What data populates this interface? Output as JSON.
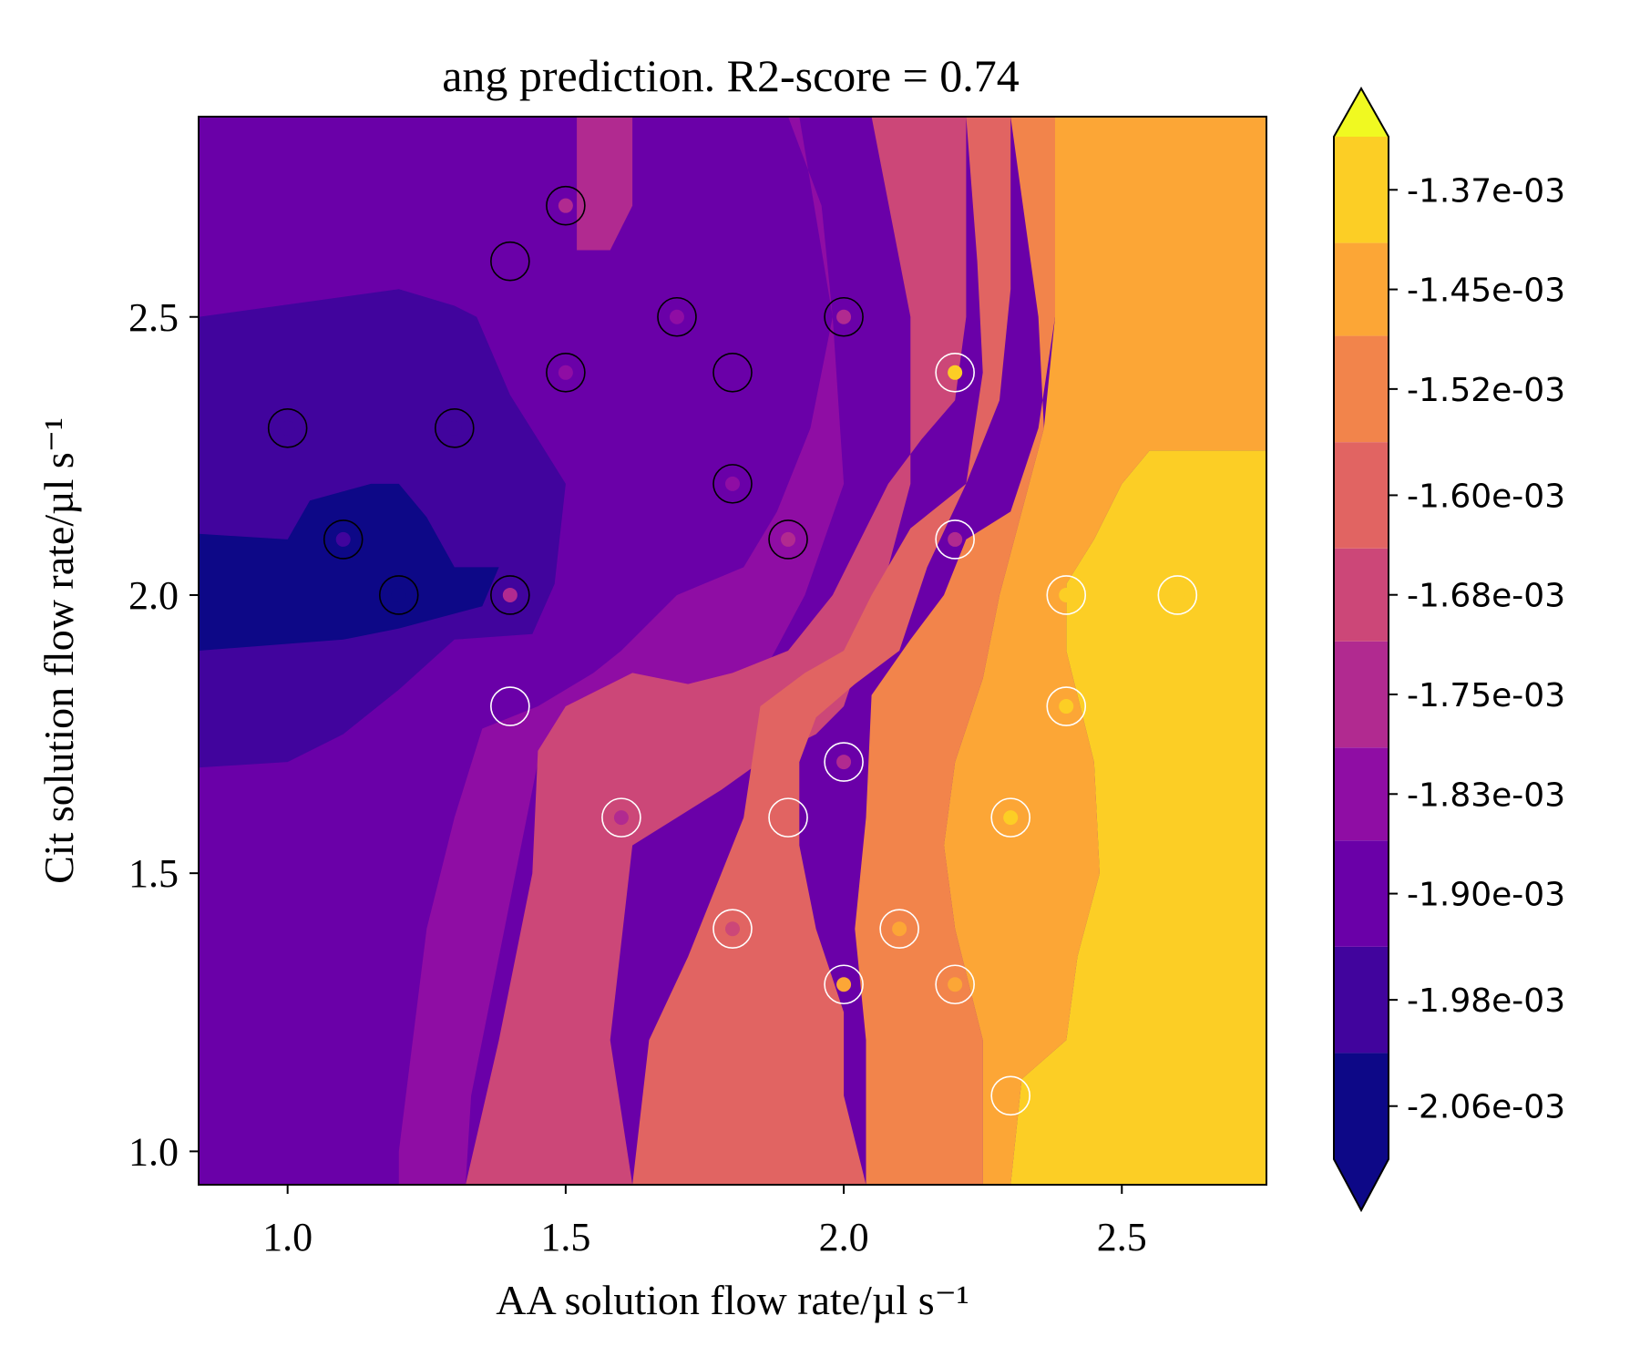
{
  "chart_data": {
    "type": "heatmap",
    "title": "ang prediction. R2-score = 0.74",
    "xlabel": "AA solution flow rate/µl s⁻¹",
    "ylabel": "Cit solution flow rate/µl s⁻¹",
    "xlim": [
      0.84,
      2.76
    ],
    "ylim": [
      0.94,
      2.86
    ],
    "x_ticks": [
      "1.0",
      "1.5",
      "2.0",
      "2.5"
    ],
    "y_ticks": [
      "1.0",
      "1.5",
      "2.0",
      "2.5"
    ],
    "colorbar": {
      "levels": [
        -0.0021,
        -0.00202,
        -0.00194,
        -0.00186,
        -0.00179,
        -0.00171,
        -0.00164,
        -0.00156,
        -0.00148,
        -0.00141,
        -0.00133
      ],
      "tick_labels": [
        "-2.06e-03",
        "-1.98e-03",
        "-1.90e-03",
        "-1.83e-03",
        "-1.75e-03",
        "-1.68e-03",
        "-1.60e-03",
        "-1.52e-03",
        "-1.45e-03",
        "-1.37e-03"
      ],
      "colors": [
        "#0d0887",
        "#41049d",
        "#6a00a8",
        "#8f0da4",
        "#b12a90",
        "#cc4778",
        "#e16462",
        "#f2844b",
        "#fca636",
        "#fcce25",
        "#f0f921"
      ],
      "extend": "both"
    },
    "data_levels": [
      {
        "x": 1.0,
        "y": 2.3,
        "level": 1
      },
      {
        "x": 1.1,
        "y": 2.1,
        "level": 1
      },
      {
        "x": 1.2,
        "y": 2.0,
        "level": 0
      },
      {
        "x": 1.3,
        "y": 2.3,
        "level": 1
      },
      {
        "x": 1.4,
        "y": 2.6,
        "level": 2
      },
      {
        "x": 1.4,
        "y": 2.0,
        "level": 4
      },
      {
        "x": 1.4,
        "y": 1.8,
        "level": 2
      },
      {
        "x": 1.5,
        "y": 2.7,
        "level": 4
      },
      {
        "x": 1.5,
        "y": 2.4,
        "level": 3
      },
      {
        "x": 1.6,
        "y": 1.6,
        "level": 4
      },
      {
        "x": 1.7,
        "y": 2.5,
        "level": 3
      },
      {
        "x": 1.8,
        "y": 2.4,
        "level": 2
      },
      {
        "x": 1.8,
        "y": 2.2,
        "level": 3
      },
      {
        "x": 1.8,
        "y": 1.4,
        "level": 5
      },
      {
        "x": 1.9,
        "y": 2.1,
        "level": 4
      },
      {
        "x": 1.9,
        "y": 1.6,
        "level": 6
      },
      {
        "x": 2.0,
        "y": 2.5,
        "level": 4
      },
      {
        "x": 2.0,
        "y": 1.7,
        "level": 4
      },
      {
        "x": 2.0,
        "y": 1.3,
        "level": 8
      },
      {
        "x": 2.1,
        "y": 1.4,
        "level": 8
      },
      {
        "x": 2.2,
        "y": 2.4,
        "level": 9
      },
      {
        "x": 2.2,
        "y": 2.1,
        "level": 4
      },
      {
        "x": 2.2,
        "y": 1.3,
        "level": 8
      },
      {
        "x": 2.3,
        "y": 1.6,
        "level": 9
      },
      {
        "x": 2.3,
        "y": 1.1,
        "level": 8
      },
      {
        "x": 2.4,
        "y": 2.0,
        "level": 9
      },
      {
        "x": 2.4,
        "y": 1.8,
        "level": 9
      },
      {
        "x": 2.6,
        "y": 2.0,
        "level": 9
      }
    ],
    "bands": [
      {
        "level": 1,
        "pts": [
          [
            0.84,
            2.5
          ],
          [
            1.2,
            2.55
          ],
          [
            1.3,
            2.52
          ],
          [
            1.34,
            2.5
          ],
          [
            1.4,
            2.36
          ],
          [
            1.45,
            2.28
          ],
          [
            1.5,
            2.2
          ],
          [
            1.48,
            2.02
          ],
          [
            1.44,
            1.93
          ],
          [
            1.3,
            1.92
          ],
          [
            1.2,
            1.83
          ],
          [
            1.1,
            1.75
          ],
          [
            1.0,
            1.7
          ],
          [
            0.84,
            1.69
          ]
        ]
      },
      {
        "level": 0,
        "pts": [
          [
            0.84,
            2.11
          ],
          [
            1.0,
            2.1
          ],
          [
            1.04,
            2.17
          ],
          [
            1.15,
            2.2
          ],
          [
            1.2,
            2.2
          ],
          [
            1.25,
            2.14
          ],
          [
            1.3,
            2.05
          ],
          [
            1.38,
            2.05
          ],
          [
            1.35,
            1.98
          ],
          [
            1.2,
            1.94
          ],
          [
            1.1,
            1.92
          ],
          [
            0.84,
            1.9
          ]
        ]
      },
      {
        "level": 3,
        "pts": [
          [
            1.5,
            2.86
          ],
          [
            1.9,
            2.86
          ],
          [
            1.96,
            2.7
          ],
          [
            1.98,
            2.5
          ],
          [
            1.94,
            2.3
          ],
          [
            1.88,
            2.15
          ],
          [
            1.82,
            2.05
          ],
          [
            1.7,
            2.0
          ],
          [
            1.6,
            1.9
          ],
          [
            1.55,
            1.86
          ],
          [
            1.45,
            1.8
          ],
          [
            1.35,
            1.76
          ],
          [
            1.3,
            1.6
          ],
          [
            1.25,
            1.4
          ],
          [
            1.2,
            1.0
          ],
          [
            1.2,
            0.94
          ],
          [
            1.32,
            0.94
          ],
          [
            1.33,
            1.1
          ],
          [
            1.4,
            1.45
          ],
          [
            1.45,
            1.7
          ],
          [
            1.6,
            1.76
          ],
          [
            1.7,
            1.78
          ],
          [
            1.8,
            1.79
          ],
          [
            1.85,
            1.85
          ],
          [
            1.93,
            2.0
          ],
          [
            2.0,
            2.2
          ],
          [
            1.98,
            2.5
          ],
          [
            1.92,
            2.86
          ],
          [
            1.5,
            2.86
          ]
        ]
      },
      {
        "level": 4,
        "pts": [
          [
            1.52,
            2.86
          ],
          [
            1.62,
            2.86
          ],
          [
            1.62,
            2.7
          ],
          [
            1.58,
            2.62
          ],
          [
            1.52,
            2.62
          ],
          [
            1.52,
            2.86
          ]
        ]
      },
      {
        "level": 5,
        "pts": [
          [
            1.98,
            2.86
          ],
          [
            2.22,
            2.86
          ],
          [
            2.22,
            2.5
          ],
          [
            2.2,
            2.35
          ],
          [
            2.14,
            2.28
          ],
          [
            2.08,
            2.2
          ],
          [
            2.02,
            2.08
          ],
          [
            1.98,
            2.0
          ],
          [
            1.9,
            1.9
          ],
          [
            1.8,
            1.86
          ],
          [
            1.72,
            1.84
          ],
          [
            1.62,
            1.86
          ],
          [
            1.5,
            1.8
          ],
          [
            1.45,
            1.72
          ],
          [
            1.44,
            1.5
          ],
          [
            1.38,
            1.2
          ],
          [
            1.32,
            0.94
          ],
          [
            1.62,
            0.94
          ],
          [
            1.58,
            1.2
          ],
          [
            1.62,
            1.55
          ],
          [
            1.7,
            1.6
          ],
          [
            1.78,
            1.65
          ],
          [
            1.85,
            1.7
          ],
          [
            1.95,
            1.75
          ],
          [
            2.0,
            1.8
          ],
          [
            2.05,
            1.95
          ],
          [
            2.08,
            2.05
          ],
          [
            2.12,
            2.2
          ],
          [
            2.12,
            2.5
          ],
          [
            2.05,
            2.86
          ]
        ]
      },
      {
        "level": 6,
        "pts": [
          [
            2.22,
            2.86
          ],
          [
            2.3,
            2.86
          ],
          [
            2.3,
            2.55
          ],
          [
            2.28,
            2.35
          ],
          [
            2.22,
            2.2
          ],
          [
            2.12,
            2.12
          ],
          [
            2.05,
            2.0
          ],
          [
            2.0,
            1.9
          ],
          [
            1.93,
            1.86
          ],
          [
            1.85,
            1.8
          ],
          [
            1.82,
            1.6
          ],
          [
            1.78,
            1.5
          ],
          [
            1.72,
            1.35
          ],
          [
            1.65,
            1.2
          ],
          [
            1.62,
            0.94
          ],
          [
            2.04,
            0.94
          ],
          [
            2.0,
            1.1
          ],
          [
            2.0,
            1.25
          ],
          [
            1.95,
            1.4
          ],
          [
            1.92,
            1.55
          ],
          [
            1.92,
            1.7
          ],
          [
            1.95,
            1.78
          ],
          [
            2.02,
            1.84
          ],
          [
            2.1,
            1.9
          ],
          [
            2.15,
            2.05
          ],
          [
            2.22,
            2.2
          ],
          [
            2.25,
            2.4
          ],
          [
            2.24,
            2.6
          ],
          [
            2.22,
            2.86
          ]
        ]
      },
      {
        "level": 7,
        "pts": [
          [
            2.3,
            2.86
          ],
          [
            2.38,
            2.86
          ],
          [
            2.38,
            2.5
          ],
          [
            2.35,
            2.3
          ],
          [
            2.3,
            2.15
          ],
          [
            2.22,
            2.1
          ],
          [
            2.18,
            2.0
          ],
          [
            2.12,
            1.92
          ],
          [
            2.05,
            1.82
          ],
          [
            2.04,
            1.6
          ],
          [
            2.02,
            1.4
          ],
          [
            2.04,
            1.2
          ],
          [
            2.04,
            0.94
          ],
          [
            2.25,
            0.94
          ],
          [
            2.25,
            1.2
          ],
          [
            2.2,
            1.4
          ],
          [
            2.18,
            1.55
          ],
          [
            2.2,
            1.7
          ],
          [
            2.25,
            1.85
          ],
          [
            2.28,
            2.0
          ],
          [
            2.32,
            2.15
          ],
          [
            2.36,
            2.3
          ],
          [
            2.35,
            2.5
          ],
          [
            2.3,
            2.86
          ]
        ]
      },
      {
        "level": 8,
        "pts": [
          [
            2.38,
            2.86
          ],
          [
            2.76,
            2.86
          ],
          [
            2.76,
            2.26
          ],
          [
            2.55,
            2.26
          ],
          [
            2.5,
            2.2
          ],
          [
            2.45,
            2.1
          ],
          [
            2.4,
            2.02
          ],
          [
            2.4,
            1.9
          ],
          [
            2.45,
            1.7
          ],
          [
            2.46,
            1.5
          ],
          [
            2.42,
            1.35
          ],
          [
            2.4,
            1.2
          ],
          [
            2.32,
            1.13
          ],
          [
            2.3,
            0.94
          ],
          [
            2.25,
            0.94
          ],
          [
            2.25,
            1.2
          ],
          [
            2.2,
            1.4
          ],
          [
            2.18,
            1.55
          ],
          [
            2.2,
            1.7
          ],
          [
            2.25,
            1.85
          ],
          [
            2.28,
            2.0
          ],
          [
            2.32,
            2.15
          ],
          [
            2.36,
            2.3
          ],
          [
            2.38,
            2.5
          ],
          [
            2.38,
            2.86
          ]
        ]
      },
      {
        "level": 9,
        "pts": [
          [
            2.76,
            2.26
          ],
          [
            2.55,
            2.26
          ],
          [
            2.5,
            2.2
          ],
          [
            2.45,
            2.1
          ],
          [
            2.4,
            2.02
          ],
          [
            2.4,
            1.9
          ],
          [
            2.45,
            1.7
          ],
          [
            2.46,
            1.5
          ],
          [
            2.42,
            1.35
          ],
          [
            2.4,
            1.2
          ],
          [
            2.32,
            1.13
          ],
          [
            2.3,
            0.94
          ],
          [
            2.76,
            0.94
          ]
        ]
      }
    ]
  }
}
